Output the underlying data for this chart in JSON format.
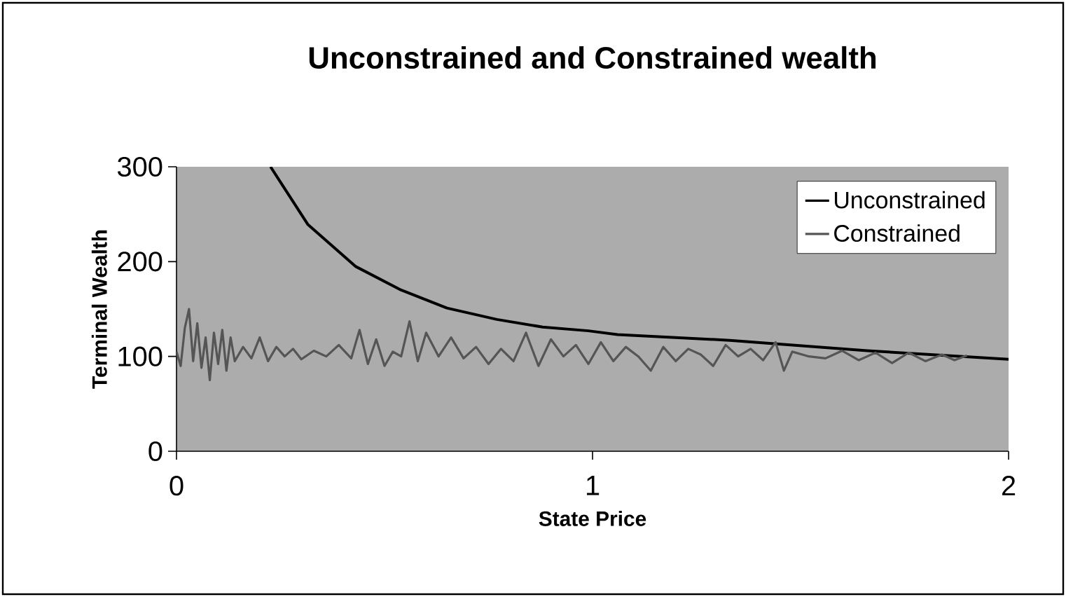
{
  "chart_data": {
    "type": "line",
    "title": "Unconstrained and Constrained wealth",
    "xlabel": "State Price",
    "ylabel": "Terminal Wealth",
    "xlim": [
      0,
      2
    ],
    "ylim": [
      0,
      300
    ],
    "xticks": [
      0,
      1,
      2
    ],
    "yticks": [
      0,
      100,
      200,
      300
    ],
    "grid": false,
    "legend": "top right",
    "marker": "none",
    "line_style": "solid",
    "series": [
      {
        "name": "Unconstrained",
        "color": "#000000",
        "x": [
          0.226,
          0.316,
          0.43,
          0.54,
          0.65,
          0.77,
          0.88,
          0.99,
          1.06,
          1.33,
          1.66,
          2.0
        ],
        "values": [
          300,
          239,
          195,
          170,
          151,
          139,
          131,
          127,
          123,
          117,
          106,
          97
        ]
      },
      {
        "name": "Constrained",
        "color": "#555555",
        "x": [
          0.0,
          0.01,
          0.02,
          0.03,
          0.04,
          0.05,
          0.06,
          0.07,
          0.08,
          0.09,
          0.1,
          0.11,
          0.12,
          0.13,
          0.14,
          0.16,
          0.18,
          0.2,
          0.22,
          0.24,
          0.26,
          0.28,
          0.3,
          0.33,
          0.36,
          0.39,
          0.42,
          0.44,
          0.46,
          0.48,
          0.5,
          0.52,
          0.54,
          0.56,
          0.58,
          0.6,
          0.63,
          0.66,
          0.69,
          0.72,
          0.75,
          0.78,
          0.81,
          0.84,
          0.87,
          0.9,
          0.93,
          0.96,
          0.99,
          1.02,
          1.05,
          1.08,
          1.11,
          1.14,
          1.17,
          1.2,
          1.23,
          1.26,
          1.29,
          1.32,
          1.35,
          1.38,
          1.41,
          1.44,
          1.46,
          1.48,
          1.52,
          1.56,
          1.6,
          1.64,
          1.68,
          1.72,
          1.76,
          1.8,
          1.84,
          1.87,
          1.9
        ],
        "values": [
          105,
          90,
          130,
          150,
          95,
          135,
          88,
          120,
          75,
          125,
          92,
          128,
          85,
          120,
          95,
          110,
          98,
          120,
          95,
          110,
          100,
          108,
          97,
          106,
          100,
          112,
          98,
          128,
          92,
          118,
          90,
          105,
          100,
          137,
          95,
          125,
          100,
          120,
          98,
          110,
          92,
          108,
          95,
          125,
          90,
          118,
          100,
          112,
          92,
          115,
          95,
          110,
          100,
          85,
          110,
          95,
          108,
          102,
          90,
          112,
          100,
          108,
          96,
          115,
          85,
          105,
          100,
          98,
          106,
          96,
          104,
          93,
          104,
          95,
          102,
          96,
          101
        ]
      }
    ]
  }
}
